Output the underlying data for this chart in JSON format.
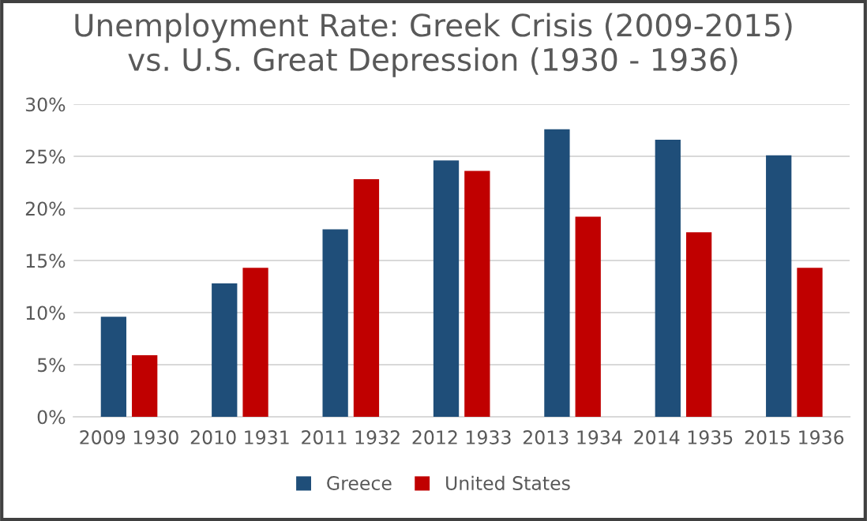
{
  "chart_data": {
    "type": "bar",
    "title": "Unemployment Rate: Greek Crisis (2009-2015)\nvs. U.S. Great Depression (1930 - 1936)",
    "categories": [
      "2009 1930",
      "2010 1931",
      "2011 1932",
      "2012 1933",
      "2013 1934",
      "2014 1935",
      "2015 1936"
    ],
    "series": [
      {
        "name": "Greece",
        "color": "#1f4e79",
        "values": [
          9.6,
          12.8,
          18.0,
          24.6,
          27.6,
          26.6,
          25.1
        ]
      },
      {
        "name": "United States",
        "color": "#c00000",
        "values": [
          5.9,
          14.3,
          22.8,
          23.6,
          19.2,
          17.7,
          14.3
        ]
      }
    ],
    "ylim": [
      0,
      30
    ],
    "yticks": [
      {
        "value": 0,
        "label": "0%"
      },
      {
        "value": 5,
        "label": "5%"
      },
      {
        "value": 10,
        "label": "10%"
      },
      {
        "value": 15,
        "label": "15%"
      },
      {
        "value": 20,
        "label": "20%"
      },
      {
        "value": 25,
        "label": "25%"
      },
      {
        "value": 30,
        "label": "30%"
      }
    ],
    "grid": "y",
    "legend": "bottom"
  }
}
